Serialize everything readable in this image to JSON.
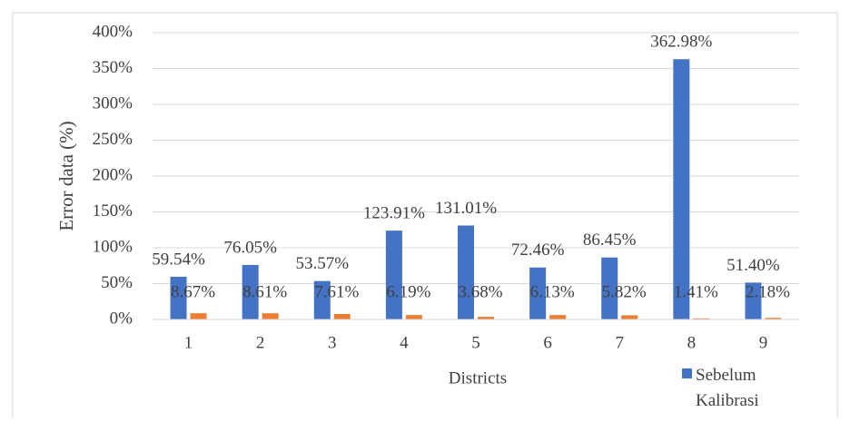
{
  "chart_data": {
    "type": "bar",
    "x_label": "Districts",
    "y_label": "Error data (%)",
    "categories": [
      "1",
      "2",
      "3",
      "4",
      "5",
      "6",
      "7",
      "8",
      "9"
    ],
    "series": [
      {
        "name": "Sebelum Kalibrasi",
        "color": "#4472c4",
        "values": [
          59.54,
          76.05,
          53.57,
          123.91,
          131.01,
          72.46,
          86.45,
          362.98,
          51.4
        ],
        "value_labels": [
          "59.54%",
          "76.05%",
          "53.57%",
          "123.91%",
          "131.01%",
          "72.46%",
          "86.45%",
          "362.98%",
          "51.40%"
        ]
      },
      {
        "color": "#ed7d31",
        "values": [
          8.67,
          8.61,
          7.61,
          6.19,
          3.68,
          6.13,
          5.82,
          1.41,
          2.18
        ],
        "value_labels": [
          "8.67%",
          "8.61%",
          "7.61%",
          "6.19%",
          "3.68%",
          "6.13%",
          "5.82%",
          "1.41%",
          "2.18%"
        ]
      }
    ],
    "ylim": [
      0,
      400
    ],
    "yticks": [
      {
        "value": 0,
        "label": "0%"
      },
      {
        "value": 50,
        "label": "50%"
      },
      {
        "value": 100,
        "label": "100%"
      },
      {
        "value": 150,
        "label": "150%"
      },
      {
        "value": 200,
        "label": "200%"
      },
      {
        "value": 250,
        "label": "250%"
      },
      {
        "value": 300,
        "label": "300%"
      },
      {
        "value": 350,
        "label": "350%"
      },
      {
        "value": 400,
        "label": "400%"
      }
    ],
    "grid": true,
    "legend": "bottom-right"
  }
}
